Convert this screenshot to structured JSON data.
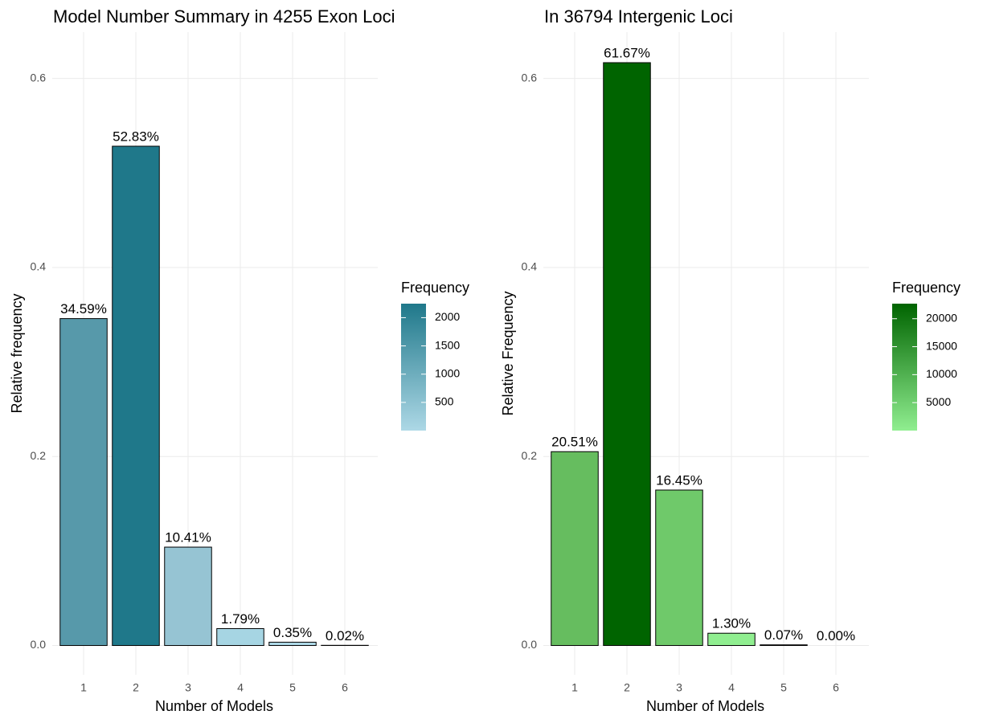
{
  "chart_data": [
    {
      "type": "bar",
      "title": "Model Number Summary in 4255 Exon Loci",
      "x_label": "Number of Models",
      "y_label": "Relative frequency",
      "categories": [
        "1",
        "2",
        "3",
        "4",
        "5",
        "6"
      ],
      "values": [
        0.3459,
        0.5283,
        0.1041,
        0.0179,
        0.0035,
        0.0002
      ],
      "value_labels": [
        "34.59%",
        "52.83%",
        "10.41%",
        "1.79%",
        "0.35%",
        "0.02%"
      ],
      "colors": [
        "#5799aa",
        "#1f788a",
        "#96c4d3",
        "#a6d5e3",
        "#add8e6",
        "#add8e6"
      ],
      "ylim": [
        -0.031,
        0.649
      ],
      "yticks": [
        {
          "value": 0,
          "label": "0.0"
        },
        0.2,
        0.4,
        0.6
      ],
      "grid": true,
      "legend": {
        "title": "Frequency",
        "low_color": "#add8e6",
        "high_color": "#1f788a",
        "lim": [
          1,
          2248
        ],
        "ticks": [
          500,
          1000,
          1500,
          2000
        ]
      }
    },
    {
      "type": "bar",
      "title": "In 36794 Intergenic Loci",
      "x_label": "Number of Models",
      "y_label": "Relative Frequency",
      "categories": [
        "1",
        "2",
        "3",
        "4",
        "5",
        "6"
      ],
      "values": [
        0.2051,
        0.6167,
        0.1645,
        0.013,
        0.0007,
        0.0
      ],
      "value_labels": [
        "20.51%",
        "61.67%",
        "16.45%",
        "1.30%",
        "0.07%",
        "0.00%"
      ],
      "colors": [
        "#66bd5f",
        "#006400",
        "#6fc96a",
        "#90ee90",
        "#90ee90",
        "#90ee90"
      ],
      "ylim": [
        -0.031,
        0.649
      ],
      "yticks": [
        {
          "value": 0,
          "label": "0.0"
        },
        0.2,
        0.4,
        0.6
      ],
      "grid": true,
      "legend": {
        "title": "Frequency",
        "low_color": "#90ee90",
        "high_color": "#006400",
        "lim": [
          0,
          22691
        ],
        "ticks": [
          5000,
          10000,
          15000,
          20000
        ]
      }
    }
  ]
}
